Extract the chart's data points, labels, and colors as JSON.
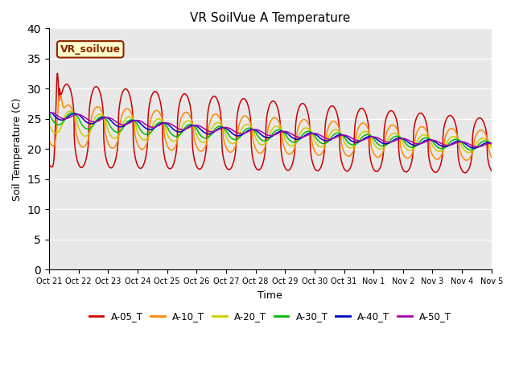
{
  "title": "VR SoilVue A Temperature",
  "xlabel": "Time",
  "ylabel": "Soil Temperature (C)",
  "ylim": [
    0,
    40
  ],
  "yticks": [
    0,
    5,
    10,
    15,
    20,
    25,
    30,
    35,
    40
  ],
  "bg_color": "#e8e8e8",
  "legend_label": "VR_soilvue",
  "series_colors": {
    "A-05_T": "#cc0000",
    "A-10_T": "#ff8800",
    "A-20_T": "#cccc00",
    "A-30_T": "#00bb00",
    "A-40_T": "#0000cc",
    "A-50_T": "#aa00aa"
  },
  "series_names": [
    "A-05_T",
    "A-10_T",
    "A-20_T",
    "A-30_T",
    "A-40_T",
    "A-50_T"
  ],
  "xtick_labels": [
    "Oct 21",
    "Oct 22",
    "Oct 23",
    "Oct 24",
    "Oct 25",
    "Oct 26",
    "Oct 27",
    "Oct 28",
    "Oct 29",
    "Oct 30",
    "Oct 31",
    "Nov 1",
    "Nov 2",
    "Nov 3",
    "Nov 4",
    "Nov 5"
  ],
  "n_days": 15,
  "ppd": 144
}
